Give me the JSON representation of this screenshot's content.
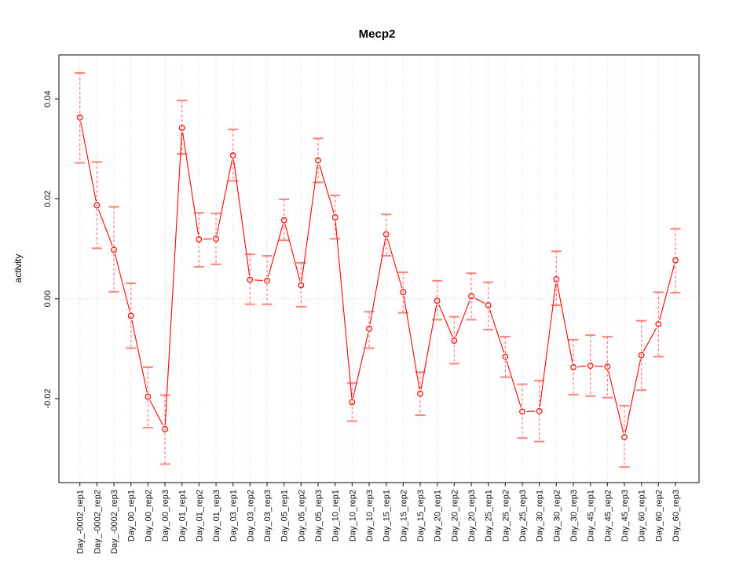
{
  "chart_data": {
    "type": "line",
    "title": "Mecp2",
    "xlabel": "",
    "ylabel": "activity",
    "series_name": "activity",
    "marker": "open-circle",
    "line_color": "#ff0000",
    "error_bar_color": "#ff8080",
    "grid_color": "#d4d4d4",
    "axis_color": "#333333",
    "zero_line": true,
    "grid": "vertical-dotted-per-category",
    "legend_position": "none",
    "ylim": [
      -0.0368,
      0.0488
    ],
    "yticks": [
      {
        "value": -0.02,
        "label": "-0.02"
      },
      {
        "value": 0.0,
        "label": "0.00"
      },
      {
        "value": 0.02,
        "label": "0.02"
      },
      {
        "value": 0.04,
        "label": "0.04"
      }
    ],
    "categories": [
      "Day_-0002_rep1",
      "Day_-0002_rep2",
      "Day_-0002_rep3",
      "Day_00_rep1",
      "Day_00_rep2",
      "Day_00_rep3",
      "Day_01_rep1",
      "Day_01_rep2",
      "Day_01_rep3",
      "Day_03_rep1",
      "Day_03_rep2",
      "Day_03_rep3",
      "Day_05_rep1",
      "Day_05_rep2",
      "Day_05_rep3",
      "Day_10_rep1",
      "Day_10_rep2",
      "Day_10_rep3",
      "Day_15_rep1",
      "Day_15_rep2",
      "Day_15_rep3",
      "Day_20_rep1",
      "Day_20_rep2",
      "Day_20_rep3",
      "Day_25_rep1",
      "Day_25_rep2",
      "Day_25_rep3",
      "Day_30_rep1",
      "Day_30_rep2",
      "Day_30_rep3",
      "Day_45_rep1",
      "Day_45_rep2",
      "Day_45_rep3",
      "Day_60_rep1",
      "Day_60_rep2",
      "Day_60_rep3"
    ],
    "values": [
      0.0363,
      0.0187,
      0.0098,
      -0.0034,
      -0.0196,
      -0.0261,
      0.0342,
      0.0119,
      0.012,
      0.0287,
      0.0038,
      0.0036,
      0.0157,
      0.0027,
      0.0277,
      0.0163,
      -0.0207,
      -0.006,
      0.0129,
      0.0013,
      -0.019,
      -0.0004,
      -0.0084,
      0.0005,
      -0.0013,
      -0.0116,
      -0.0226,
      -0.0225,
      0.0039,
      -0.0137,
      -0.0134,
      -0.0136,
      -0.0277,
      -0.0113,
      -0.0051,
      0.0077
    ],
    "error_low": [
      0.0272,
      0.0101,
      0.0014,
      -0.0099,
      -0.0258,
      -0.0331,
      0.029,
      0.0064,
      0.0069,
      0.0236,
      -0.0011,
      -0.0011,
      0.0117,
      -0.0016,
      0.0233,
      0.012,
      -0.0245,
      -0.0099,
      0.0086,
      -0.0028,
      -0.0233,
      -0.0042,
      -0.013,
      -0.0042,
      -0.0062,
      -0.0157,
      -0.0279,
      -0.0286,
      -0.0013,
      -0.0192,
      -0.0195,
      -0.0198,
      -0.0337,
      -0.0183,
      -0.0116,
      0.0012
    ],
    "error_high": [
      0.0452,
      0.0274,
      0.0184,
      0.0031,
      -0.0137,
      -0.0193,
      0.0397,
      0.0172,
      0.0171,
      0.0339,
      0.0089,
      0.0086,
      0.0199,
      0.0072,
      0.0321,
      0.0207,
      -0.0169,
      -0.0026,
      0.0169,
      0.0053,
      -0.0147,
      0.0036,
      -0.0036,
      0.0051,
      0.0033,
      -0.0076,
      -0.0171,
      -0.0164,
      0.0095,
      -0.0082,
      -0.0073,
      -0.0076,
      -0.0214,
      -0.0044,
      0.0013,
      0.014
    ]
  }
}
